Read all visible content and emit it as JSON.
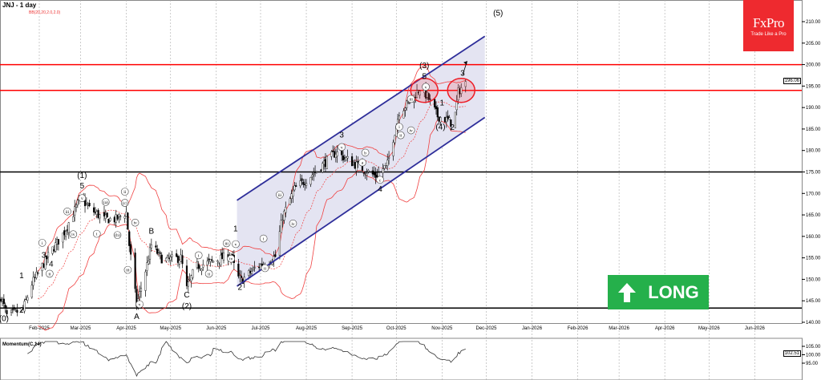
{
  "header": {
    "title": "JNJ - 1 day",
    "indicator": "BB(20,20,2.0,2.0)"
  },
  "logo": {
    "brand": "FxPro",
    "tagline": "Trade Like a Pro",
    "color": "#ee2a2f"
  },
  "signal": {
    "label": "LONG",
    "color": "#25b04b",
    "icon": "arrow-up-icon"
  },
  "last_price": "196.06",
  "momentum": {
    "label": "Momentum(C,14)",
    "last": "102.51",
    "ticks": [
      "105.00",
      "100.00",
      "95.00"
    ]
  },
  "chart_data": {
    "type": "candlestick",
    "symbol": "JNJ",
    "timeframe": "1 day",
    "ylim": [
      137,
      213
    ],
    "y_ticks": [
      140,
      145,
      150,
      155,
      160,
      165,
      170,
      175,
      180,
      185,
      190,
      195,
      200,
      205,
      210
    ],
    "x_ticks": [
      "Feb-2025",
      "Mar-2025",
      "Apr-2025",
      "May-2025",
      "Jun-2025",
      "Jul-2025",
      "Aug-2025",
      "Sep-2025",
      "Oct-2025",
      "Nov-2025",
      "Dec-2025",
      "Jan-2026",
      "Feb-2026",
      "Mar-2026",
      "Apr-2026",
      "May-2026",
      "Jun-2026"
    ],
    "x_tick_dates": [
      "2025-02-01",
      "2025-03-01",
      "2025-04-01",
      "2025-05-01",
      "2025-06-01",
      "2025-07-01",
      "2025-08-01",
      "2025-09-01",
      "2025-10-01",
      "2025-11-01",
      "2025-12-01",
      "2026-01-01",
      "2026-02-01",
      "2026-03-01",
      "2026-04-01",
      "2026-05-01",
      "2026-06-01"
    ],
    "grid": true,
    "close_path": [
      [
        "2025-01-06",
        146
      ],
      [
        "2025-01-10",
        141.5
      ],
      [
        "2025-01-21",
        143
      ],
      [
        "2025-01-27",
        149
      ],
      [
        "2025-02-08",
        156
      ],
      [
        "2025-02-18",
        161
      ],
      [
        "2025-03-01",
        169
      ],
      [
        "2025-03-07",
        166.5
      ],
      [
        "2025-03-17",
        164
      ],
      [
        "2025-03-25",
        164
      ],
      [
        "2025-04-01",
        165.6
      ],
      [
        "2025-04-03",
        158
      ],
      [
        "2025-04-08",
        144
      ],
      [
        "2025-04-15",
        153.4
      ],
      [
        "2025-04-18",
        158
      ],
      [
        "2025-04-26",
        154.4
      ],
      [
        "2025-05-08",
        155
      ],
      [
        "2025-05-12",
        147.8
      ],
      [
        "2025-05-18",
        153
      ],
      [
        "2025-05-28",
        154
      ],
      [
        "2025-06-11",
        155.7
      ],
      [
        "2025-06-15",
        150.6
      ],
      [
        "2025-06-18",
        149.7
      ],
      [
        "2025-06-27",
        152.5
      ],
      [
        "2025-07-11",
        155.3
      ],
      [
        "2025-07-16",
        164.6
      ],
      [
        "2025-07-24",
        171
      ],
      [
        "2025-08-07",
        175
      ],
      [
        "2025-08-21",
        179.6
      ],
      [
        "2025-08-26",
        178.5
      ],
      [
        "2025-09-03",
        176.8
      ],
      [
        "2025-09-17",
        174
      ],
      [
        "2025-09-25",
        176.8
      ],
      [
        "2025-10-03",
        189
      ],
      [
        "2025-10-11",
        191.7
      ],
      [
        "2025-10-17",
        194.5
      ],
      [
        "2025-10-22",
        192.6
      ],
      [
        "2025-10-29",
        188
      ],
      [
        "2025-11-05",
        187
      ],
      [
        "2025-11-09",
        186
      ],
      [
        "2025-11-12",
        193.6
      ],
      [
        "2025-11-17",
        196.06
      ]
    ],
    "levels": [
      {
        "price": 200,
        "color": "#ff0000"
      },
      {
        "price": 194,
        "color": "#ff0000"
      },
      {
        "price": 175,
        "color": "#000000"
      },
      {
        "price": 143.3,
        "color": "#000000"
      }
    ],
    "channel": {
      "color": "#2e2e9a",
      "upper": [
        [
          "2025-06-15",
          168.4
        ],
        [
          "2025-11-30",
          206.6
        ]
      ],
      "lower": [
        [
          "2025-06-15",
          148.4
        ],
        [
          "2025-11-30",
          187.7
        ]
      ]
    },
    "ellipses": [
      {
        "date": "2025-10-20",
        "price": 194
      },
      {
        "date": "2025-11-14",
        "price": 194
      }
    ],
    "arrow": {
      "from": [
        "2025-11-15",
        197.6
      ],
      "to": [
        "2025-11-18",
        200.8
      ]
    },
    "wave_labels": [
      {
        "text": "(0)",
        "date": "2025-01-08",
        "price": 140.3
      },
      {
        "text": "2",
        "date": "2025-01-20",
        "price": 142.2
      },
      {
        "text": "1",
        "date": "2025-01-20",
        "price": 150.3
      },
      {
        "text": "3",
        "date": "2025-02-04",
        "price": 155
      },
      {
        "text": "4",
        "date": "2025-02-09",
        "price": 153
      },
      {
        "text": "(1)",
        "date": "2025-03-02",
        "price": 173.6
      },
      {
        "text": "5",
        "date": "2025-03-02",
        "price": 171.2
      },
      {
        "text": "A",
        "date": "2025-04-08",
        "price": 140.7
      },
      {
        "text": "B",
        "date": "2025-04-18",
        "price": 160.6
      },
      {
        "text": "C",
        "date": "2025-05-12",
        "price": 145.8
      },
      {
        "text": "(2)",
        "date": "2025-05-12",
        "price": 143.2
      },
      {
        "text": "1",
        "date": "2025-06-14",
        "price": 161.2
      },
      {
        "text": "2",
        "date": "2025-06-17",
        "price": 147.6
      },
      {
        "text": "3",
        "date": "2025-08-25",
        "price": 183
      },
      {
        "text": "4",
        "date": "2025-09-20",
        "price": 170.4
      },
      {
        "text": "(3)",
        "date": "2025-10-20",
        "price": 199.2
      },
      {
        "text": "5",
        "date": "2025-10-20",
        "price": 197
      },
      {
        "text": "1",
        "date": "2025-11-01",
        "price": 190.5
      },
      {
        "text": "(4)",
        "date": "2025-10-31",
        "price": 184.9
      },
      {
        "text": "2",
        "date": "2025-11-08",
        "price": 184.8
      },
      {
        "text": "3",
        "date": "2025-11-15",
        "price": 197.4
      },
      {
        "text": "(5)",
        "date": "2025-12-09",
        "price": 211.4
      }
    ],
    "circled_labels": [
      {
        "text": "i",
        "date": "2025-02-03",
        "price": 158.5
      },
      {
        "text": "ii",
        "date": "2025-02-08",
        "price": 152.8
      },
      {
        "text": "iii",
        "date": "2025-02-20",
        "price": 165.8
      },
      {
        "text": "iv",
        "date": "2025-02-24",
        "price": 160.5
      },
      {
        "text": "v",
        "date": "2025-03-02",
        "price": 168.9
      },
      {
        "text": "(a)",
        "date": "2025-03-18",
        "price": 168
      },
      {
        "text": "i",
        "date": "2025-03-12",
        "price": 160.6
      },
      {
        "text": "(b)",
        "date": "2025-03-26",
        "price": 160.3
      },
      {
        "text": "ii",
        "date": "2025-03-31",
        "price": 170.4
      },
      {
        "text": "(c)",
        "date": "2025-03-31",
        "price": 167.8
      },
      {
        "text": "iv",
        "date": "2025-04-07",
        "price": 163.2
      },
      {
        "text": "iii",
        "date": "2025-04-02",
        "price": 152.2
      },
      {
        "text": "v",
        "date": "2025-04-10",
        "price": 144.2
      },
      {
        "text": "i",
        "date": "2025-05-20",
        "price": 155.6
      },
      {
        "text": "ii",
        "date": "2025-05-27",
        "price": 151.3
      },
      {
        "text": "iii",
        "date": "2025-06-08",
        "price": 158.4
      },
      {
        "text": "v",
        "date": "2025-06-12",
        "price": 158.2
      },
      {
        "text": "iv",
        "date": "2025-06-11",
        "price": 154.8
      },
      {
        "text": "i",
        "date": "2025-07-03",
        "price": 159.5
      },
      {
        "text": "ii",
        "date": "2025-07-04",
        "price": 152.6
      },
      {
        "text": "iii",
        "date": "2025-07-14",
        "price": 169.7
      },
      {
        "text": "iv",
        "date": "2025-07-23",
        "price": 163
      },
      {
        "text": "v",
        "date": "2025-08-25",
        "price": 180.8
      },
      {
        "text": "a",
        "date": "2025-09-08",
        "price": 177.2
      },
      {
        "text": "b",
        "date": "2025-09-10",
        "price": 179.5
      },
      {
        "text": "c",
        "date": "2025-09-20",
        "price": 172.8
      },
      {
        "text": "i",
        "date": "2025-10-03",
        "price": 185.5
      },
      {
        "text": "ii",
        "date": "2025-10-04",
        "price": 184.3
      },
      {
        "text": "iii",
        "date": "2025-10-11",
        "price": 192
      },
      {
        "text": "iv",
        "date": "2025-10-11",
        "price": 184.7
      },
      {
        "text": "v",
        "date": "2025-10-21",
        "price": 195.2
      }
    ]
  }
}
